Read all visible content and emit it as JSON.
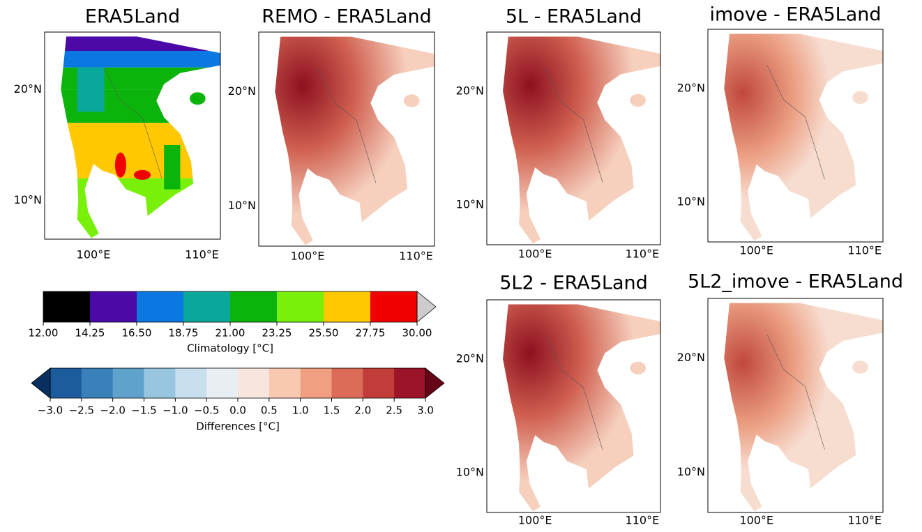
{
  "panels": [
    {
      "title": "ERA5Land",
      "yticks": [
        {
          "value": 20,
          "label": "20°N"
        },
        {
          "value": 10,
          "label": "10°N"
        }
      ],
      "xticks": [
        {
          "value": 100,
          "label": "100°E"
        },
        {
          "value": 110,
          "label": "110°E"
        }
      ]
    },
    {
      "title": "REMO - ERA5Land",
      "yticks": [
        {
          "value": 20,
          "label": "20°N"
        },
        {
          "value": 10,
          "label": "10°N"
        }
      ],
      "xticks": [
        {
          "value": 100,
          "label": "100°E"
        },
        {
          "value": 110,
          "label": "110°E"
        }
      ]
    },
    {
      "title": "5L - ERA5Land",
      "yticks": [
        {
          "value": 20,
          "label": "20°N"
        },
        {
          "value": 10,
          "label": "10°N"
        }
      ],
      "xticks": [
        {
          "value": 100,
          "label": "100°E"
        },
        {
          "value": 110,
          "label": "110°E"
        }
      ]
    },
    {
      "title": "imove - ERA5Land",
      "yticks": [
        {
          "value": 20,
          "label": "20°N"
        },
        {
          "value": 10,
          "label": "10°N"
        }
      ],
      "xticks": [
        {
          "value": 100,
          "label": "100°E"
        },
        {
          "value": 110,
          "label": "110°E"
        }
      ]
    },
    {
      "title": "5L2 - ERA5Land",
      "yticks": [
        {
          "value": 20,
          "label": "20°N"
        },
        {
          "value": 10,
          "label": "10°N"
        }
      ],
      "xticks": [
        {
          "value": 100,
          "label": "100°E"
        },
        {
          "value": 110,
          "label": "110°E"
        }
      ]
    },
    {
      "title": "5L2_imove - ERA5Land",
      "yticks": [
        {
          "value": 20,
          "label": "20°N"
        },
        {
          "value": 10,
          "label": "10°N"
        }
      ],
      "xticks": [
        {
          "value": 100,
          "label": "100°E"
        },
        {
          "value": 110,
          "label": "110°E"
        }
      ]
    }
  ],
  "colorbars": [
    {
      "label": "Climatology [°C]",
      "colors": [
        "#000000",
        "#4b0aa8",
        "#0a78e0",
        "#0aa89a",
        "#0ab40a",
        "#78f00a",
        "#ffc800",
        "#f00000"
      ],
      "over": "#cccccc",
      "ticks": [
        {
          "value": 12,
          "label": "12.00"
        },
        14.25,
        {
          "value": 16.5,
          "label": "16.50"
        },
        18.75,
        {
          "value": 21,
          "label": "21.00"
        },
        23.25,
        {
          "value": 25.5,
          "label": "25.50"
        },
        27.75,
        {
          "value": 30,
          "label": "30.00"
        }
      ]
    },
    {
      "label": "Differences [°C]",
      "colors": [
        "#1c5c9c",
        "#3a80ba",
        "#5fa2cc",
        "#98c6e0",
        "#c8dfee",
        "#e8eef2",
        "#f8e6de",
        "#f8c8b0",
        "#f0a080",
        "#dc6c58",
        "#c23c3a",
        "#9c1428"
      ],
      "under": "#073060",
      "over": "#680418",
      "ticks": [
        {
          "value": -3,
          "label": "−3.0"
        },
        {
          "value": -2.5,
          "label": "−2.5"
        },
        {
          "value": -2,
          "label": "−2.0"
        },
        {
          "value": -1.5,
          "label": "−1.5"
        },
        {
          "value": -1,
          "label": "−1.0"
        },
        {
          "value": -0.5,
          "label": "−0.5"
        },
        {
          "value": 0,
          "label": "0.0"
        },
        0.5,
        {
          "value": 1,
          "label": "1.0"
        },
        1.5,
        {
          "value": 2,
          "label": "2.0"
        },
        2.5,
        {
          "value": 3,
          "label": "3.0"
        }
      ]
    }
  ]
}
